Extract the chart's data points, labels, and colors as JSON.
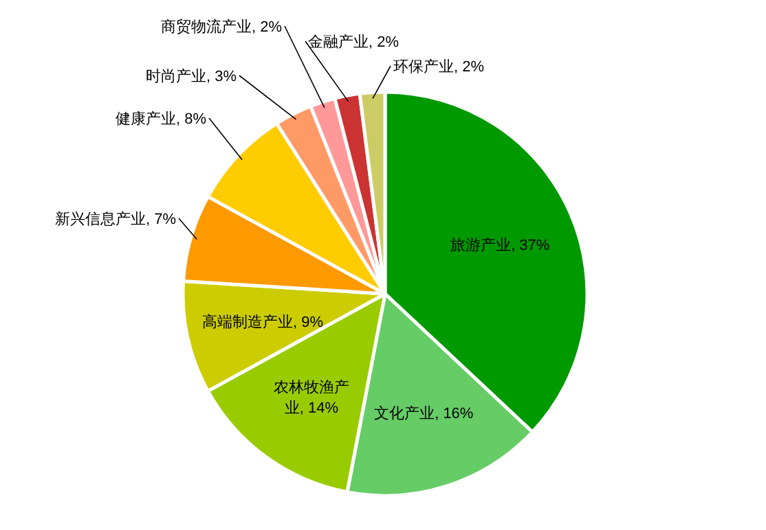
{
  "chart_data": {
    "type": "pie",
    "categories": [
      "旅游产业",
      "文化产业",
      "农林牧渔产业",
      "高端制造产业",
      "新兴信息产业",
      "健康产业",
      "时尚产业",
      "商贸物流产业",
      "金融产业",
      "环保产业"
    ],
    "values": [
      37,
      16,
      14,
      9,
      7,
      8,
      3,
      2,
      2,
      2
    ],
    "colors": [
      "#009900",
      "#66cc66",
      "#99cc00",
      "#cccc00",
      "#ff9900",
      "#ffcc00",
      "#ff9966",
      "#ff9999",
      "#cc3333",
      "#cccc66"
    ],
    "value_labels": [
      ", 37%",
      ", 16%",
      ", 14%",
      ", 9%",
      ", 7%",
      ", 8%",
      ", 3%",
      ", 2%",
      ", 2%",
      ", 2%"
    ],
    "legend": false
  }
}
